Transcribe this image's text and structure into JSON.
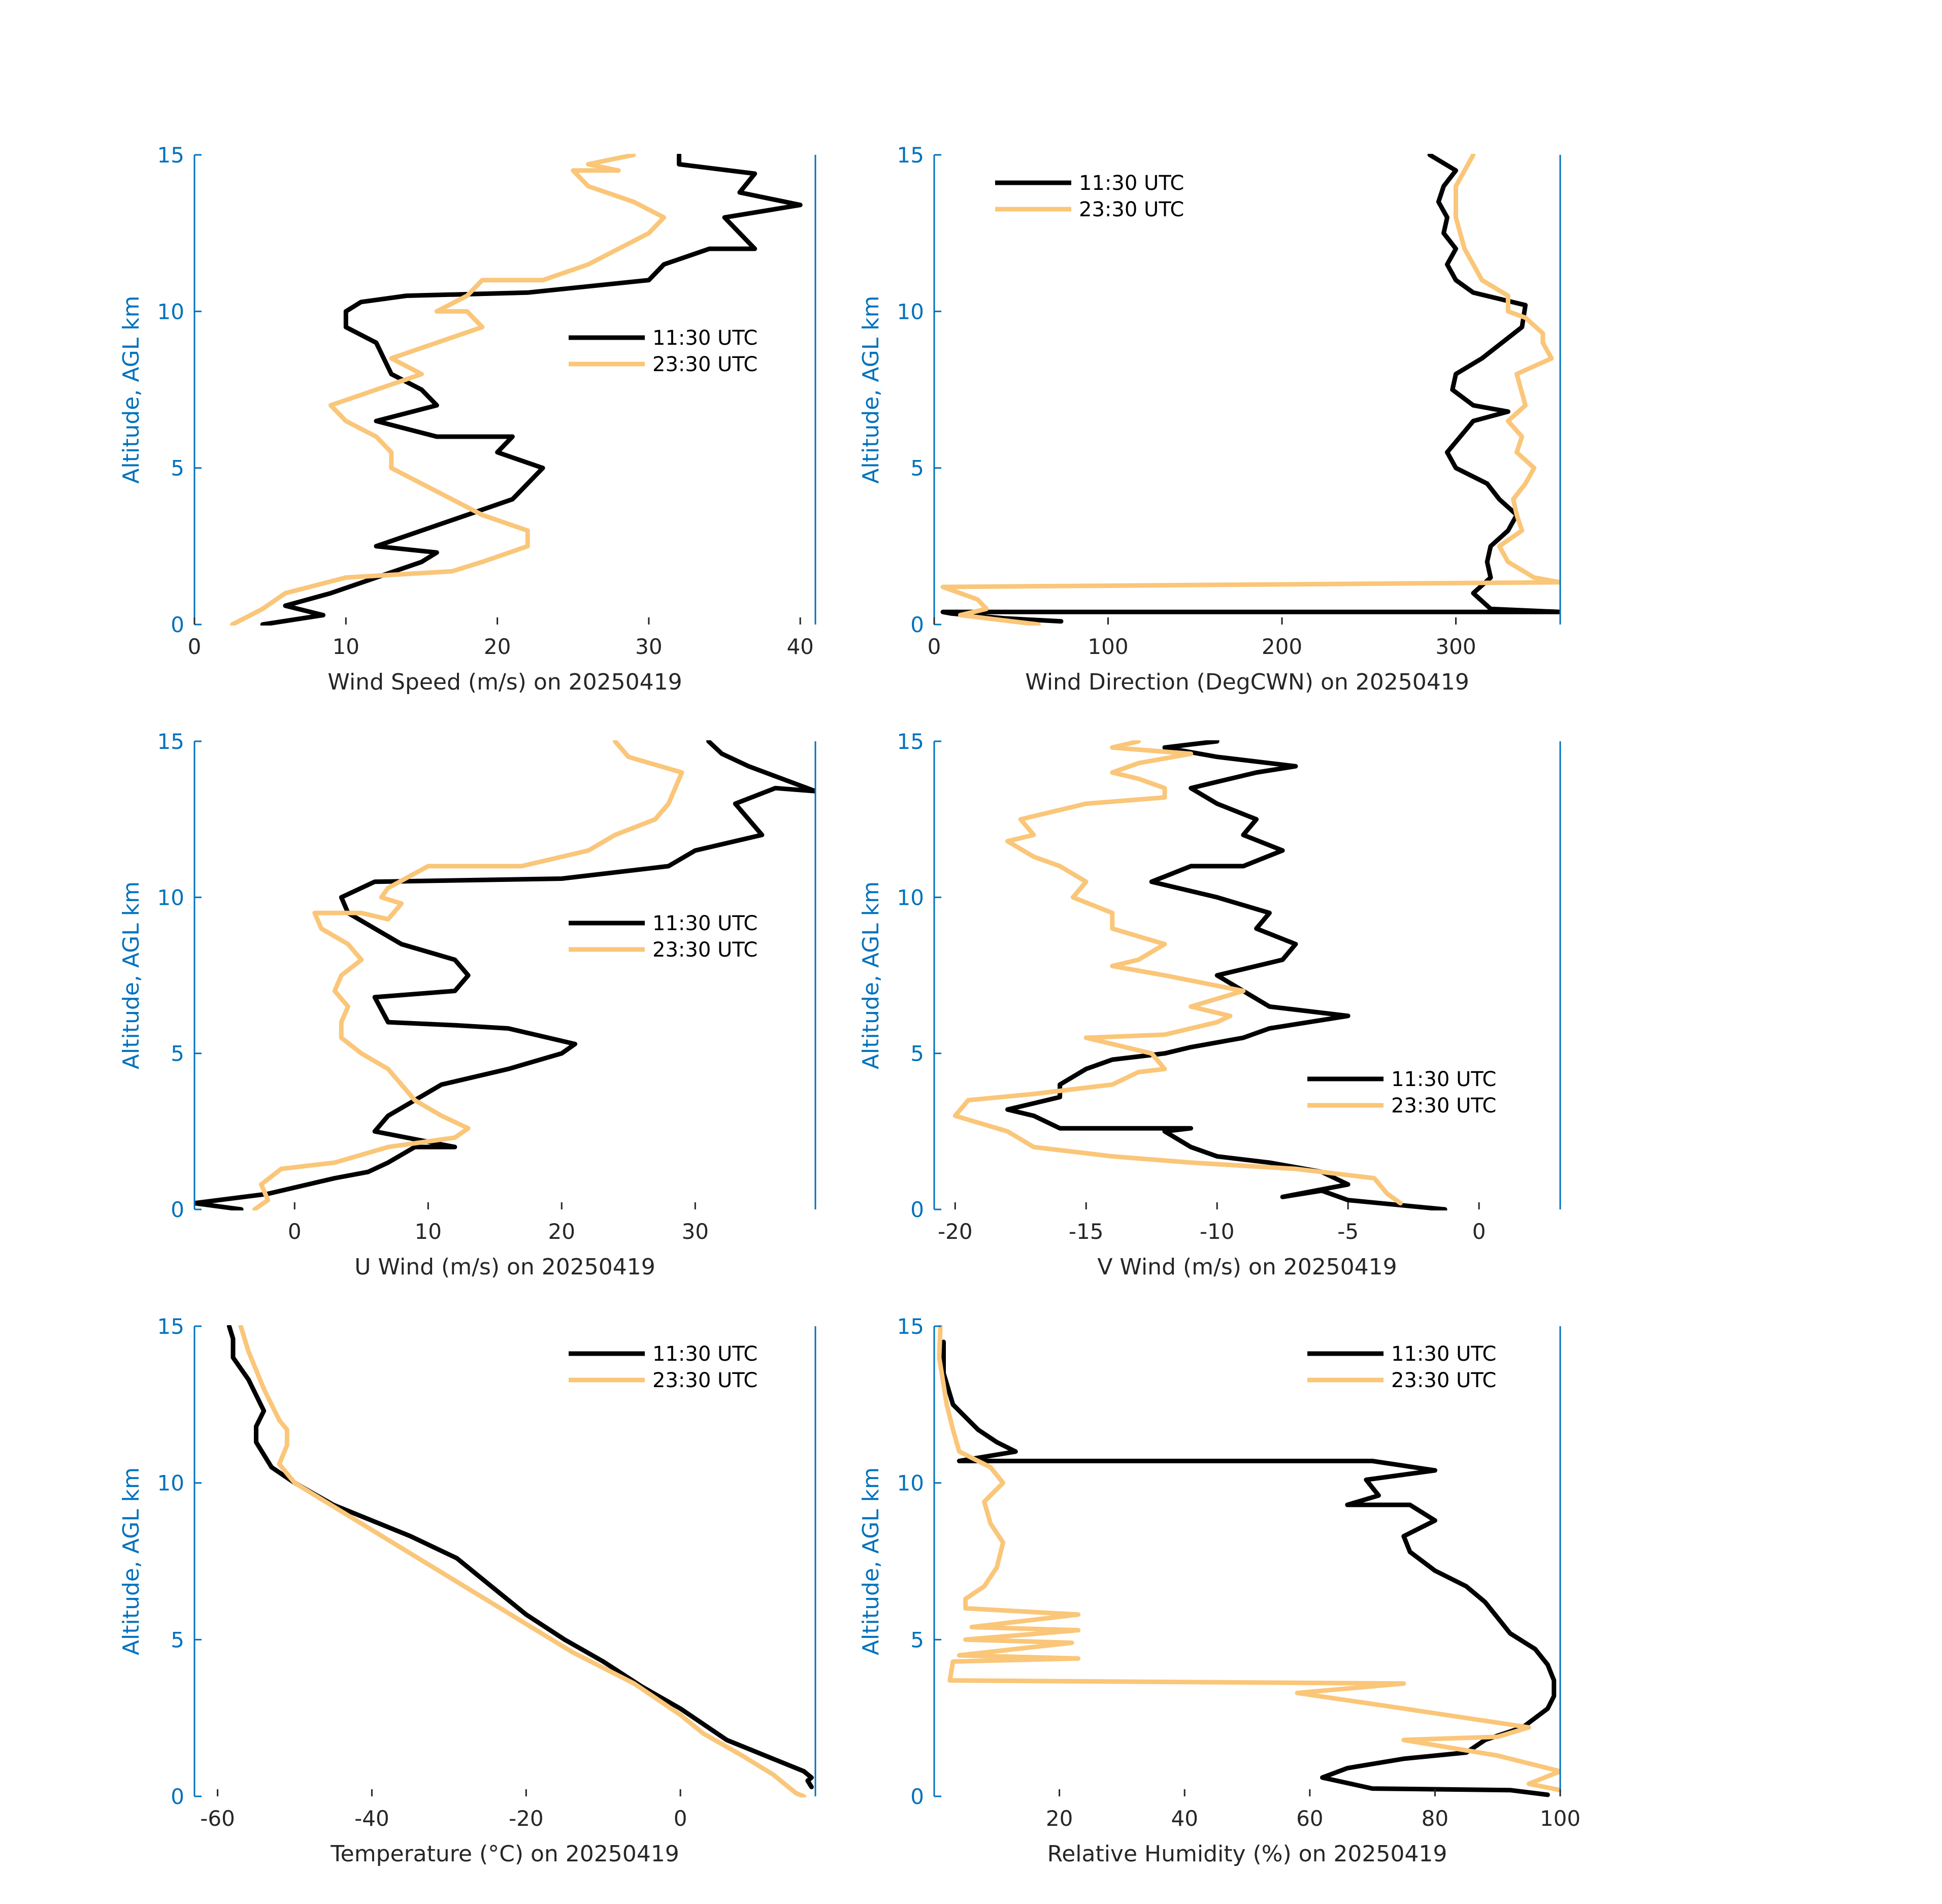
{
  "colors": {
    "axis_y": "#0072bd",
    "axis_x": "#262626",
    "series_1130": "#000000",
    "series_2330": "#fac679"
  },
  "legend_labels": [
    "11:30 UTC",
    "23:30 UTC"
  ],
  "chart_data": [
    {
      "type": "line",
      "title": "",
      "xlabel": "Wind Speed (m/s) on 20250419",
      "ylabel": "Altitude, AGL km",
      "xlim": [
        0,
        41
      ],
      "ylim": [
        0,
        15
      ],
      "xticks": [
        0,
        10,
        20,
        30,
        40
      ],
      "xtick_labels": [
        "0",
        "10",
        "20",
        "30",
        "40"
      ],
      "yticks": [
        0,
        5,
        10,
        15
      ],
      "ytick_labels": [
        "0",
        "5",
        "10",
        "15"
      ],
      "legend_position": "center-right",
      "series": [
        {
          "name": "11:30 UTC",
          "x": [
            4.5,
            8.5,
            6,
            9,
            12,
            15,
            16,
            12,
            15,
            18,
            21,
            23,
            20,
            21,
            16,
            12,
            16,
            15,
            13,
            12,
            10,
            10,
            11,
            14,
            22,
            30,
            31,
            34,
            37,
            35,
            40,
            36,
            37,
            32,
            32
          ],
          "y": [
            0,
            0.3,
            0.6,
            1,
            1.5,
            2,
            2.3,
            2.5,
            3,
            3.5,
            4,
            5,
            5.5,
            6,
            6,
            6.5,
            7,
            7.5,
            8,
            9,
            9.5,
            10,
            10.3,
            10.5,
            10.6,
            11,
            11.5,
            12,
            12,
            13,
            13.4,
            13.8,
            14.4,
            14.7,
            15
          ]
        },
        {
          "name": "23:30 UTC",
          "x": [
            2.5,
            4.5,
            6,
            10,
            17,
            19,
            22,
            22,
            19,
            17,
            15,
            13,
            13,
            12,
            10,
            9,
            15,
            13,
            16,
            19,
            18,
            16,
            18,
            19,
            23,
            26,
            28,
            30,
            31,
            29,
            26,
            25,
            28,
            26,
            27,
            29
          ],
          "y": [
            0,
            0.5,
            1,
            1.5,
            1.7,
            2,
            2.5,
            3,
            3.5,
            4,
            4.5,
            5,
            5.5,
            6,
            6.5,
            7,
            8,
            8.5,
            9,
            9.5,
            10,
            10,
            10.5,
            11,
            11,
            11.5,
            12,
            12.5,
            13,
            13.5,
            14,
            14.5,
            14.5,
            14.7,
            14.8,
            15
          ]
        }
      ]
    },
    {
      "type": "line",
      "title": "",
      "xlabel": "Wind Direction (DegCWN) on 20250419",
      "ylabel": "Altitude, AGL km",
      "xlim": [
        0,
        360
      ],
      "ylim": [
        0,
        15
      ],
      "xticks": [
        0,
        100,
        200,
        300
      ],
      "xtick_labels": [
        "0",
        "100",
        "200",
        "300"
      ],
      "yticks": [
        0,
        5,
        10,
        15
      ],
      "ytick_labels": [
        "0",
        "5",
        "10",
        "15"
      ],
      "legend_position": "top-left",
      "series": [
        {
          "name": "11:30 UTC",
          "x": [
            73,
            40,
            10,
            5,
            360,
            320,
            310,
            320,
            318,
            320,
            330,
            335,
            325,
            318,
            300,
            295,
            310,
            330,
            310,
            298,
            300,
            315,
            338,
            340,
            310,
            300,
            295,
            300,
            293,
            295,
            290,
            293,
            300,
            285
          ],
          "y": [
            0.1,
            0.2,
            0.35,
            0.4,
            0.4,
            0.5,
            1,
            1.5,
            2,
            2.5,
            3,
            3.5,
            4,
            4.5,
            5,
            5.5,
            6.5,
            6.8,
            7,
            7.5,
            8,
            8.5,
            9.5,
            10.2,
            10.6,
            11,
            11.5,
            12,
            12.5,
            13,
            13.5,
            14,
            14.5,
            15
          ]
        },
        {
          "name": "23:30 UTC",
          "x": [
            60,
            30,
            15,
            30,
            25,
            5,
            360,
            345,
            330,
            325,
            338,
            335,
            333,
            340,
            345,
            335,
            338,
            330,
            340,
            335,
            355,
            350,
            350,
            340,
            330,
            330,
            315,
            310,
            305,
            300,
            300,
            310
          ],
          "y": [
            0,
            0.2,
            0.3,
            0.5,
            0.8,
            1.2,
            1.35,
            1.5,
            2,
            2.5,
            3,
            3.5,
            4,
            4.5,
            5,
            5.5,
            6,
            6.5,
            7,
            8,
            8.5,
            9,
            9.3,
            9.8,
            10,
            10.5,
            11,
            11.5,
            12,
            13,
            14,
            15
          ]
        }
      ]
    },
    {
      "type": "line",
      "title": "",
      "xlabel": "U Wind (m/s) on 20250419",
      "ylabel": "Altitude, AGL km",
      "xlim": [
        -7.5,
        39
      ],
      "ylim": [
        0,
        15
      ],
      "xticks": [
        0,
        10,
        20,
        30
      ],
      "xtick_labels": [
        "0",
        "10",
        "20",
        "30"
      ],
      "yticks": [
        0,
        5,
        10,
        15
      ],
      "ytick_labels": [
        "0",
        "5",
        "10",
        "15"
      ],
      "legend_position": "center-right",
      "series": [
        {
          "name": "11:30 UTC",
          "x": [
            -4,
            -7.5,
            -2,
            3,
            5.5,
            7,
            9,
            12,
            6,
            7,
            9,
            11,
            16,
            20,
            21,
            16,
            12,
            7,
            6,
            12,
            13,
            12,
            8,
            4,
            3.5,
            6,
            20,
            28,
            30,
            35,
            33,
            36,
            39,
            34,
            32,
            31
          ],
          "y": [
            0,
            0.2,
            0.5,
            1,
            1.2,
            1.5,
            2,
            2,
            2.5,
            3,
            3.5,
            4,
            4.5,
            5,
            5.3,
            5.8,
            5.9,
            6,
            6.8,
            7,
            7.5,
            8,
            8.5,
            9.5,
            10,
            10.5,
            10.6,
            11,
            11.5,
            12,
            13,
            13.5,
            13.4,
            14.2,
            14.6,
            15
          ]
        },
        {
          "name": "23:30 UTC",
          "x": [
            -3,
            -2,
            -2.5,
            -1,
            3,
            7,
            12,
            13,
            11,
            9,
            8,
            7,
            5,
            3.5,
            3.5,
            4,
            3,
            3.5,
            5,
            4,
            2,
            1.5,
            5,
            7,
            8,
            6.5,
            7,
            10,
            17,
            22,
            24,
            27,
            28,
            29,
            25,
            24
          ],
          "y": [
            0,
            0.3,
            0.8,
            1.3,
            1.5,
            2,
            2.3,
            2.6,
            3,
            3.5,
            4,
            4.5,
            5,
            5.5,
            6,
            6.5,
            7,
            7.5,
            8,
            8.5,
            9,
            9.5,
            9.5,
            9.3,
            9.8,
            10,
            10.3,
            11,
            11,
            11.5,
            12,
            12.5,
            13,
            14,
            14.5,
            15
          ]
        }
      ]
    },
    {
      "type": "line",
      "title": "",
      "xlabel": "V Wind (m/s) on 20250419",
      "ylabel": "Altitude, AGL km",
      "xlim": [
        -20.8,
        3.1
      ],
      "ylim": [
        0,
        15
      ],
      "xticks": [
        -20,
        -15,
        -10,
        -5,
        0
      ],
      "xtick_labels": [
        "-20",
        "-15",
        "-10",
        "-5",
        "0"
      ],
      "yticks": [
        0,
        5,
        10,
        15
      ],
      "ytick_labels": [
        "0",
        "5",
        "10",
        "15"
      ],
      "legend_position": "center-right",
      "series": [
        {
          "name": "11:30 UTC",
          "x": [
            -1.3,
            -5,
            -6,
            -7.5,
            -5,
            -6,
            -8,
            -10,
            -11,
            -12,
            -11,
            -16,
            -17,
            -18,
            -16,
            -16,
            -15,
            -14,
            -12,
            -11,
            -9,
            -8,
            -5,
            -8,
            -9,
            -10,
            -8.5,
            -7.5,
            -7,
            -8.5,
            -8,
            -10,
            -12.5,
            -11,
            -9,
            -7.5,
            -9,
            -8.5,
            -10,
            -11,
            -8.5,
            -7,
            -10,
            -12,
            -11,
            -10
          ],
          "y": [
            0,
            0.3,
            0.6,
            0.4,
            0.8,
            1.2,
            1.5,
            1.7,
            2,
            2.5,
            2.6,
            2.6,
            3,
            3.2,
            3.6,
            4,
            4.5,
            4.8,
            5,
            5.2,
            5.5,
            5.8,
            6.2,
            6.5,
            7,
            7.5,
            7.8,
            8,
            8.5,
            9,
            9.5,
            10,
            10.5,
            11,
            11,
            11.5,
            12,
            12.5,
            13,
            13.5,
            14,
            14.2,
            14.5,
            14.8,
            14.9,
            15
          ]
        },
        {
          "name": "23:30 UTC",
          "x": [
            -3,
            -3.5,
            -4,
            -7,
            -11,
            -14,
            -17,
            -18,
            -20,
            -19.5,
            -17,
            -14,
            -13,
            -12,
            -12.5,
            -15,
            -12,
            -10,
            -9.5,
            -11,
            -9,
            -12,
            -14,
            -13,
            -12,
            -14,
            -14,
            -15.5,
            -15,
            -16,
            -17,
            -18,
            -17,
            -17.5,
            -16,
            -15,
            -12,
            -12,
            -13,
            -14,
            -13,
            -11,
            -14,
            -13
          ],
          "y": [
            0.2,
            0.5,
            1,
            1.3,
            1.5,
            1.7,
            2,
            2.5,
            3,
            3.5,
            3.7,
            4,
            4.4,
            4.5,
            5,
            5.5,
            5.6,
            6,
            6.2,
            6.5,
            7,
            7.5,
            7.8,
            8,
            8.5,
            9,
            9.5,
            10,
            10.5,
            11,
            11.3,
            11.8,
            12,
            12.5,
            12.8,
            13,
            13.2,
            13.5,
            13.8,
            14,
            14.3,
            14.6,
            14.8,
            15
          ]
        }
      ]
    },
    {
      "type": "line",
      "title": "",
      "xlabel": "Temperature (°C) on 20250419",
      "ylabel": "Altitude, AGL km",
      "xlim": [
        -63,
        17.5
      ],
      "ylim": [
        0,
        15
      ],
      "xticks": [
        -60,
        -40,
        -20,
        0
      ],
      "xtick_labels": [
        "-60",
        "-40",
        "-20",
        "0"
      ],
      "yticks": [
        0,
        5,
        10,
        15
      ],
      "ytick_labels": [
        "0",
        "5",
        "10",
        "15"
      ],
      "legend_position": "top-right",
      "series": [
        {
          "name": "11:30 UTC",
          "x": [
            17,
            16.5,
            17,
            16,
            12,
            6,
            0,
            -5,
            -10,
            -15,
            -20,
            -25,
            -29,
            -35,
            -45,
            -50,
            -53,
            -55,
            -55,
            -54,
            -55,
            -56,
            -58,
            -58,
            -58.5
          ],
          "y": [
            0.3,
            0.5,
            0.6,
            0.8,
            1.2,
            1.8,
            2.8,
            3.5,
            4.3,
            5,
            5.8,
            6.8,
            7.6,
            8.3,
            9.3,
            10,
            10.5,
            11.3,
            11.8,
            12.3,
            12.8,
            13.3,
            14,
            14.6,
            15
          ]
        },
        {
          "name": "23:30 UTC",
          "x": [
            16,
            15,
            14,
            12,
            8,
            3,
            0,
            -6,
            -14,
            -22,
            -30,
            -38,
            -46,
            -50,
            -52,
            -51,
            -51,
            -52,
            -53,
            -54,
            -55,
            -56,
            -57
          ],
          "y": [
            0,
            0.1,
            0.3,
            0.7,
            1.3,
            2,
            2.6,
            3.6,
            4.6,
            5.8,
            7,
            8.2,
            9.4,
            10,
            10.6,
            11.2,
            11.7,
            12,
            12.5,
            13,
            13.6,
            14.2,
            15
          ]
        }
      ]
    },
    {
      "type": "line",
      "title": "",
      "xlabel": "Relative Humidity (%) on 20250419",
      "ylabel": "Altitude, AGL km",
      "xlim": [
        0,
        100
      ],
      "ylim": [
        0,
        15
      ],
      "xticks": [
        20,
        40,
        60,
        80,
        100
      ],
      "xtick_labels": [
        "20",
        "40",
        "60",
        "80",
        "100"
      ],
      "yticks": [
        0,
        5,
        10,
        15
      ],
      "ytick_labels": [
        "0",
        "5",
        "10",
        "15"
      ],
      "legend_position": "top-right",
      "series": [
        {
          "name": "11:30 UTC",
          "x": [
            98,
            92,
            70,
            62,
            66,
            75,
            85,
            88,
            94,
            98,
            99,
            99,
            98,
            96,
            92,
            90,
            88,
            85,
            80,
            76,
            75,
            80,
            76,
            66,
            71,
            69,
            80,
            70,
            4,
            13,
            10,
            7,
            3,
            1.5,
            1.5
          ],
          "y": [
            0.05,
            0.2,
            0.25,
            0.6,
            0.9,
            1.2,
            1.4,
            1.8,
            2.2,
            2.8,
            3.2,
            3.7,
            4.2,
            4.7,
            5.2,
            5.7,
            6.2,
            6.7,
            7.2,
            7.8,
            8.3,
            8.8,
            9.3,
            9.3,
            9.6,
            10.1,
            10.4,
            10.7,
            10.7,
            11,
            11.3,
            11.7,
            12.5,
            13.5,
            14.5
          ]
        },
        {
          "name": "23:30 UTC",
          "x": [
            100,
            95,
            100,
            90,
            75,
            90,
            95,
            75,
            58,
            75,
            2.5,
            3,
            23,
            4,
            22,
            5,
            23,
            6,
            23,
            5,
            5,
            8,
            10,
            11,
            9,
            8,
            11,
            9,
            4,
            3,
            2,
            0.8,
            1
          ],
          "y": [
            0.2,
            0.4,
            0.8,
            1.3,
            1.8,
            1.9,
            2.2,
            2.8,
            3.3,
            3.6,
            3.7,
            4.3,
            4.4,
            4.5,
            4.9,
            5,
            5.3,
            5.4,
            5.8,
            6,
            6.3,
            6.7,
            7.3,
            8.1,
            8.7,
            9.4,
            10,
            10.5,
            11,
            11.7,
            12.5,
            14,
            15
          ]
        }
      ]
    }
  ]
}
